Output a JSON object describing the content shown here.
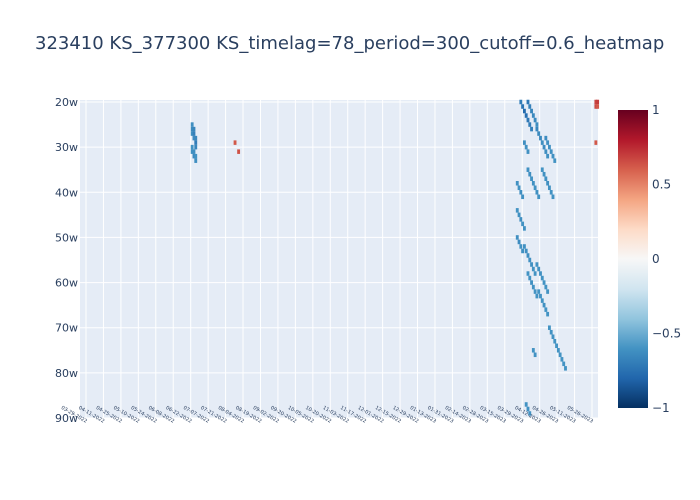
{
  "chart_data": {
    "type": "heatmap",
    "title": "323410 KS_377300 KS_timelag=78_period=300_cutoff=0.6_heatmap",
    "xlabel": "",
    "ylabel": "",
    "x_tick_labels": [
      "03-29-2022",
      "04-11-2022",
      "04-25-2022",
      "05-10-2022",
      "05-24-2022",
      "06-08-2022",
      "06-22-2022",
      "07-07-2022",
      "07-21-2022",
      "08-04-2022",
      "08-19-2022",
      "09-02-2022",
      "09-20-2022",
      "10-05-2022",
      "10-20-2022",
      "11-03-2022",
      "11-17-2022",
      "12-01-2022",
      "12-15-2022",
      "12-29-2022",
      "01-13-2023",
      "01-31-2023",
      "02-14-2023",
      "02-28-2023",
      "03-15-2023",
      "03-29-2023",
      "04-12-2023",
      "04-26-2023",
      "05-11-2023",
      "05-26-2023"
    ],
    "y_tick_labels": [
      "20w",
      "30w",
      "40w",
      "50w",
      "60w",
      "70w",
      "80w",
      "90w"
    ],
    "y_range": [
      20,
      90
    ],
    "colorscale": "RdBu",
    "zrange": [
      -1,
      1
    ],
    "colorbar_ticks": [
      {
        "value": 1,
        "label": "1"
      },
      {
        "value": 0.5,
        "label": "0.5"
      },
      {
        "value": 0,
        "label": "0"
      },
      {
        "value": -0.5,
        "label": "−0.5"
      },
      {
        "value": -1,
        "label": "−1"
      }
    ],
    "cell_width_days": 3,
    "row_height_weeks": 1,
    "note_values": "Sparse cells; only values with |corr| >= cutoff shown. Each cell: [x_index_of_day_range, window_weeks, value].",
    "cells": [
      [
        62,
        25,
        -0.62
      ],
      [
        62,
        26,
        -0.64
      ],
      [
        62,
        27,
        -0.61
      ],
      [
        63,
        26,
        -0.66
      ],
      [
        63,
        27,
        -0.68
      ],
      [
        63,
        28,
        -0.63
      ],
      [
        64,
        28,
        -0.65
      ],
      [
        64,
        29,
        -0.7
      ],
      [
        64,
        30,
        -0.66
      ],
      [
        62,
        30,
        -0.6
      ],
      [
        62,
        31,
        -0.61
      ],
      [
        63,
        31,
        -0.62
      ],
      [
        63,
        32,
        -0.64
      ],
      [
        64,
        32,
        -0.6
      ],
      [
        64,
        33,
        -0.62
      ],
      [
        86,
        29,
        0.62
      ],
      [
        88,
        31,
        0.64
      ],
      [
        246,
        20,
        -0.7
      ],
      [
        247,
        21,
        -0.74
      ],
      [
        248,
        22,
        -0.78
      ],
      [
        249,
        23,
        -0.76
      ],
      [
        250,
        24,
        -0.72
      ],
      [
        251,
        25,
        -0.7
      ],
      [
        252,
        26,
        -0.68
      ],
      [
        250,
        20,
        -0.72
      ],
      [
        251,
        21,
        -0.68
      ],
      [
        252,
        22,
        -0.66
      ],
      [
        253,
        23,
        -0.64
      ],
      [
        254,
        24,
        -0.64
      ],
      [
        255,
        25,
        -0.62
      ],
      [
        255,
        26,
        -0.66
      ],
      [
        256,
        27,
        -0.64
      ],
      [
        257,
        28,
        -0.64
      ],
      [
        258,
        29,
        -0.62
      ],
      [
        259,
        30,
        -0.63
      ],
      [
        260,
        31,
        -0.62
      ],
      [
        261,
        32,
        -0.61
      ],
      [
        260,
        28,
        -0.63
      ],
      [
        261,
        29,
        -0.62
      ],
      [
        262,
        30,
        -0.61
      ],
      [
        263,
        31,
        -0.61
      ],
      [
        264,
        32,
        -0.61
      ],
      [
        265,
        33,
        -0.6
      ],
      [
        248,
        29,
        -0.62
      ],
      [
        249,
        30,
        -0.61
      ],
      [
        250,
        31,
        -0.61
      ],
      [
        244,
        38,
        -0.61
      ],
      [
        245,
        39,
        -0.6
      ],
      [
        246,
        40,
        -0.62
      ],
      [
        247,
        41,
        -0.61
      ],
      [
        250,
        35,
        -0.61
      ],
      [
        251,
        36,
        -0.62
      ],
      [
        252,
        37,
        -0.6
      ],
      [
        253,
        38,
        -0.61
      ],
      [
        254,
        39,
        -0.6
      ],
      [
        255,
        40,
        -0.61
      ],
      [
        256,
        41,
        -0.6
      ],
      [
        258,
        35,
        -0.6
      ],
      [
        259,
        36,
        -0.61
      ],
      [
        260,
        37,
        -0.61
      ],
      [
        261,
        38,
        -0.62
      ],
      [
        262,
        39,
        -0.6
      ],
      [
        263,
        40,
        -0.6
      ],
      [
        264,
        41,
        -0.6
      ],
      [
        244,
        44,
        -0.6
      ],
      [
        245,
        45,
        -0.61
      ],
      [
        246,
        46,
        -0.62
      ],
      [
        247,
        47,
        -0.6
      ],
      [
        248,
        48,
        -0.61
      ],
      [
        244,
        50,
        -0.62
      ],
      [
        245,
        51,
        -0.63
      ],
      [
        246,
        52,
        -0.6
      ],
      [
        247,
        53,
        -0.61
      ],
      [
        248,
        52,
        -0.61
      ],
      [
        249,
        53,
        -0.62
      ],
      [
        250,
        54,
        -0.62
      ],
      [
        251,
        55,
        -0.61
      ],
      [
        252,
        56,
        -0.61
      ],
      [
        253,
        57,
        -0.6
      ],
      [
        254,
        58,
        -0.6
      ],
      [
        255,
        56,
        -0.6
      ],
      [
        256,
        57,
        -0.6
      ],
      [
        257,
        58,
        -0.61
      ],
      [
        258,
        59,
        -0.6
      ],
      [
        259,
        60,
        -0.6
      ],
      [
        260,
        61,
        -0.6
      ],
      [
        261,
        62,
        -0.6
      ],
      [
        250,
        58,
        -0.6
      ],
      [
        251,
        59,
        -0.6
      ],
      [
        252,
        60,
        -0.61
      ],
      [
        253,
        61,
        -0.6
      ],
      [
        254,
        62,
        -0.6
      ],
      [
        255,
        63,
        -0.6
      ],
      [
        256,
        62,
        -0.6
      ],
      [
        257,
        63,
        -0.6
      ],
      [
        258,
        64,
        -0.6
      ],
      [
        259,
        65,
        -0.61
      ],
      [
        260,
        66,
        -0.6
      ],
      [
        261,
        67,
        -0.6
      ],
      [
        262,
        70,
        -0.6
      ],
      [
        263,
        71,
        -0.6
      ],
      [
        264,
        72,
        -0.6
      ],
      [
        265,
        73,
        -0.6
      ],
      [
        266,
        74,
        -0.6
      ],
      [
        267,
        75,
        -0.6
      ],
      [
        268,
        76,
        -0.6
      ],
      [
        269,
        77,
        -0.6
      ],
      [
        270,
        78,
        -0.6
      ],
      [
        271,
        79,
        -0.6
      ],
      [
        253,
        75,
        -0.6
      ],
      [
        254,
        76,
        -0.6
      ],
      [
        249,
        87,
        -0.6
      ],
      [
        250,
        88,
        -0.61
      ],
      [
        251,
        89,
        -0.6
      ],
      [
        288,
        20,
        0.68
      ],
      [
        289,
        20,
        0.7
      ],
      [
        288,
        21,
        0.66
      ],
      [
        289,
        21,
        0.62
      ],
      [
        288,
        29,
        0.62
      ]
    ],
    "x_count": 290,
    "legend_position": "right"
  }
}
